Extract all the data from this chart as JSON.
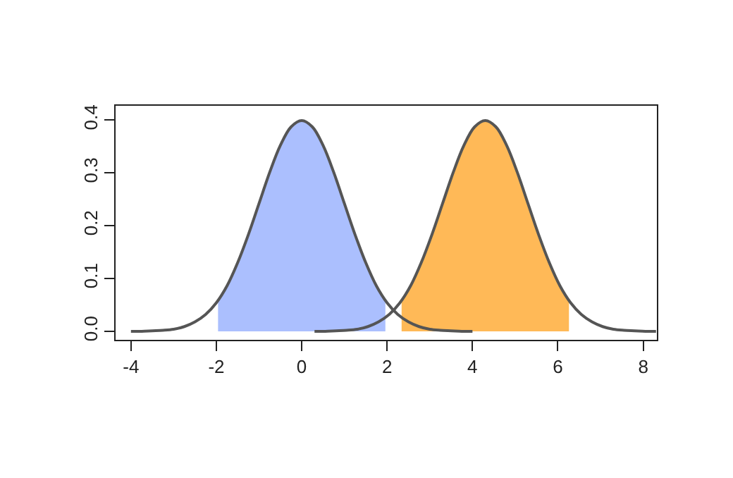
{
  "chart_data": {
    "type": "line",
    "xlim": [
      -4.36,
      8.32
    ],
    "xticks": [
      -4,
      -2,
      0,
      2,
      4,
      6,
      8
    ],
    "ylim": [
      -0.016,
      0.427
    ],
    "yticks": [
      {
        "value": 0,
        "label": "0.0"
      },
      {
        "value": 0.1,
        "label": "0.1"
      },
      {
        "value": 0.2,
        "label": "0.2"
      },
      {
        "value": 0.3,
        "label": "0.3"
      },
      {
        "value": 0.4,
        "label": "0.4"
      }
    ],
    "grid": false,
    "marker": "none",
    "line_style": "solid",
    "series": [
      {
        "type": "area",
        "color": "#abbffe",
        "x": [
          -1.96,
          -1.75,
          -1.5,
          -1.25,
          -1,
          -0.75,
          -0.5,
          -0.25,
          0,
          0.25,
          0.5,
          0.75,
          1,
          1.25,
          1.5,
          1.75,
          1.96
        ],
        "values": [
          0.058,
          0.086,
          0.13,
          0.183,
          0.242,
          0.301,
          0.352,
          0.387,
          0.399,
          0.387,
          0.352,
          0.301,
          0.242,
          0.183,
          0.13,
          0.086,
          0.058
        ]
      },
      {
        "type": "area",
        "color": "#ffb957",
        "x": [
          2.34,
          2.55,
          2.8,
          3.05,
          3.3,
          3.55,
          3.8,
          4.05,
          4.3,
          4.55,
          4.8,
          5.05,
          5.3,
          5.55,
          5.8,
          6.05,
          6.26
        ],
        "values": [
          0.058,
          0.086,
          0.13,
          0.183,
          0.242,
          0.301,
          0.352,
          0.387,
          0.399,
          0.387,
          0.352,
          0.301,
          0.242,
          0.183,
          0.13,
          0.086,
          0.058
        ]
      },
      {
        "color": "#555555",
        "x": [
          -4,
          -3.75,
          -3.5,
          -3.25,
          -3,
          -2.75,
          -2.5,
          -2.25,
          -2,
          -1.75,
          -1.5,
          -1.25,
          -1,
          -0.75,
          -0.5,
          -0.25,
          0,
          0.25,
          0.5,
          0.75,
          1,
          1.25,
          1.5,
          1.75,
          2,
          2.25,
          2.5,
          2.75,
          3,
          3.25,
          3.5,
          3.75,
          4
        ],
        "values": [
          0.0,
          0.0,
          0.001,
          0.002,
          0.004,
          0.009,
          0.018,
          0.032,
          0.054,
          0.086,
          0.13,
          0.183,
          0.242,
          0.301,
          0.352,
          0.387,
          0.399,
          0.387,
          0.352,
          0.301,
          0.242,
          0.183,
          0.13,
          0.086,
          0.054,
          0.032,
          0.018,
          0.009,
          0.004,
          0.002,
          0.001,
          0.0,
          0.0
        ]
      },
      {
        "color": "#555555",
        "x": [
          0.3,
          0.55,
          0.8,
          1.05,
          1.3,
          1.55,
          1.8,
          2.05,
          2.3,
          2.55,
          2.8,
          3.05,
          3.3,
          3.55,
          3.8,
          4.05,
          4.3,
          4.55,
          4.8,
          5.05,
          5.3,
          5.55,
          5.8,
          6.05,
          6.3,
          6.55,
          6.8,
          7.05,
          7.3,
          7.55,
          7.8,
          8.05,
          8.3
        ],
        "values": [
          0.0,
          0.0,
          0.001,
          0.002,
          0.004,
          0.009,
          0.018,
          0.032,
          0.054,
          0.086,
          0.13,
          0.183,
          0.242,
          0.301,
          0.352,
          0.387,
          0.399,
          0.387,
          0.352,
          0.301,
          0.242,
          0.183,
          0.13,
          0.086,
          0.054,
          0.032,
          0.018,
          0.009,
          0.004,
          0.002,
          0.001,
          0.0,
          0.0
        ]
      }
    ]
  }
}
